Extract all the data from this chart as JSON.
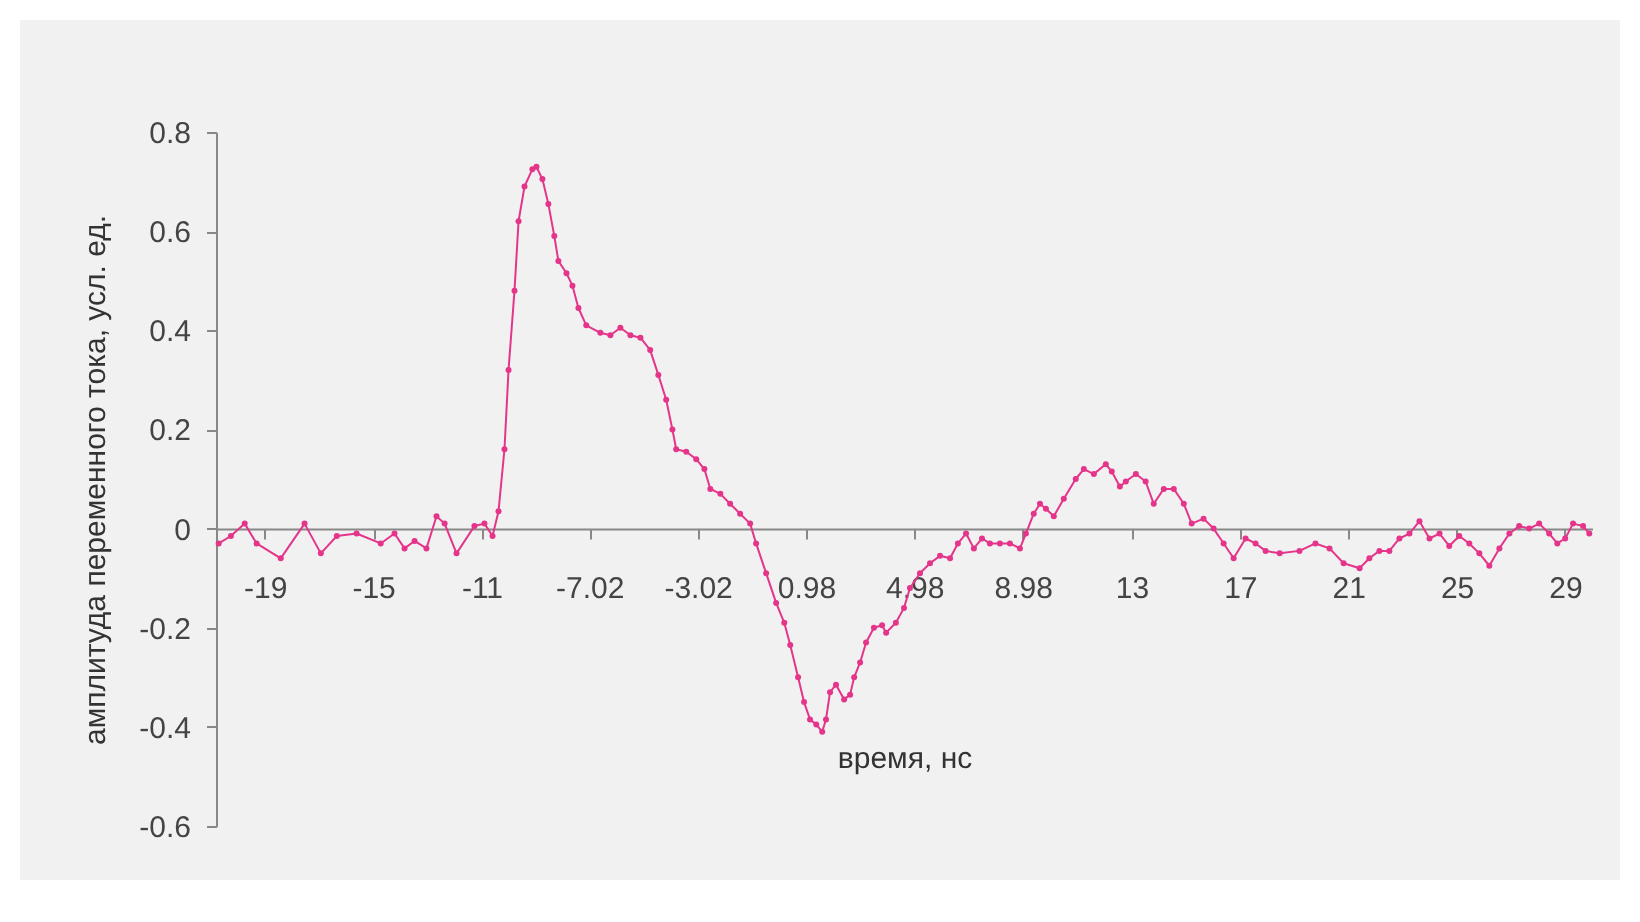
{
  "chart_data": {
    "type": "line",
    "xlabel": "время, нс",
    "ylabel": "амплитуда переменного тока, усл. ед.",
    "x": [
      -20.7,
      -20.25,
      -19.74,
      -19.3,
      -18.41,
      -17.53,
      -16.93,
      -16.34,
      -15.61,
      -14.72,
      -14.21,
      -13.84,
      -13.47,
      -13.03,
      -12.66,
      -12.36,
      -11.92,
      -11.26,
      -10.89,
      -10.59,
      -10.37,
      -10.15,
      -10.0,
      -9.78,
      -9.63,
      -9.41,
      -9.12,
      -8.97,
      -8.75,
      -8.53,
      -8.31,
      -8.16,
      -7.86,
      -7.64,
      -7.42,
      -7.13,
      -6.61,
      -6.24,
      -5.87,
      -5.5,
      -5.13,
      -4.77,
      -4.47,
      -4.18,
      -3.95,
      -3.81,
      -3.44,
      -3.07,
      -2.77,
      -2.55,
      -2.18,
      -1.82,
      -1.45,
      -1.08,
      -0.86,
      -0.49,
      -0.12,
      0.18,
      0.4,
      0.69,
      0.91,
      1.13,
      1.36,
      1.58,
      1.72,
      1.87,
      2.09,
      2.39,
      2.61,
      2.76,
      2.98,
      3.2,
      3.49,
      3.79,
      3.94,
      4.3,
      4.6,
      4.82,
      5.19,
      5.56,
      5.93,
      6.3,
      6.59,
      6.89,
      7.18,
      7.48,
      7.77,
      8.14,
      8.51,
      8.88,
      9.1,
      9.39,
      9.62,
      9.84,
      10.13,
      10.5,
      10.94,
      11.24,
      11.61,
      12.05,
      12.27,
      12.57,
      12.79,
      13.16,
      13.52,
      13.82,
      14.19,
      14.56,
      14.93,
      15.22,
      15.66,
      16.03,
      16.4,
      16.77,
      17.21,
      17.58,
      17.95,
      18.47,
      19.2,
      19.79,
      20.31,
      20.83,
      21.42,
      21.78,
      22.15,
      22.52,
      22.89,
      23.26,
      23.63,
      24.0,
      24.37,
      24.73,
      25.1,
      25.47,
      25.84,
      26.21,
      26.58,
      26.95,
      27.31,
      27.68,
      28.05,
      28.42,
      28.72,
      29.01,
      29.3,
      29.67,
      29.9
    ],
    "series": [
      {
        "color": "#e4358a",
        "values": [
          -0.03,
          -0.015,
          0.01,
          -0.03,
          -0.06,
          0.01,
          -0.05,
          -0.015,
          -0.01,
          -0.03,
          -0.01,
          -0.04,
          -0.025,
          -0.04,
          0.025,
          0.01,
          -0.05,
          0.005,
          0.01,
          -0.015,
          0.035,
          0.16,
          0.32,
          0.48,
          0.62,
          0.69,
          0.725,
          0.73,
          0.705,
          0.655,
          0.59,
          0.54,
          0.515,
          0.49,
          0.445,
          0.41,
          0.395,
          0.39,
          0.405,
          0.39,
          0.385,
          0.36,
          0.31,
          0.26,
          0.2,
          0.16,
          0.155,
          0.14,
          0.12,
          0.08,
          0.07,
          0.05,
          0.03,
          0.01,
          -0.03,
          -0.09,
          -0.15,
          -0.19,
          -0.235,
          -0.3,
          -0.35,
          -0.385,
          -0.395,
          -0.41,
          -0.385,
          -0.33,
          -0.315,
          -0.345,
          -0.335,
          -0.3,
          -0.27,
          -0.23,
          -0.2,
          -0.195,
          -0.21,
          -0.19,
          -0.16,
          -0.12,
          -0.09,
          -0.07,
          -0.055,
          -0.06,
          -0.03,
          -0.01,
          -0.04,
          -0.02,
          -0.03,
          -0.03,
          -0.03,
          -0.04,
          -0.01,
          0.03,
          0.05,
          0.04,
          0.025,
          0.06,
          0.1,
          0.12,
          0.11,
          0.13,
          0.115,
          0.085,
          0.095,
          0.11,
          0.095,
          0.05,
          0.08,
          0.08,
          0.05,
          0.01,
          0.02,
          0,
          -0.03,
          -0.06,
          -0.02,
          -0.03,
          -0.045,
          -0.05,
          -0.045,
          -0.03,
          -0.04,
          -0.07,
          -0.08,
          -0.06,
          -0.045,
          -0.045,
          -0.02,
          -0.01,
          0.015,
          -0.02,
          -0.01,
          -0.035,
          -0.015,
          -0.03,
          -0.05,
          -0.075,
          -0.04,
          -0.01,
          0.005,
          0,
          0.01,
          -0.01,
          -0.03,
          -0.02,
          0.01,
          0.005,
          -0.01
        ]
      }
    ],
    "xlim": [
      -20.8,
      30
    ],
    "ylim": [
      -0.6,
      0.8
    ],
    "xticks": [
      -19,
      -15,
      -11,
      -7.02,
      -3.02,
      0.98,
      4.98,
      8.98,
      13,
      17,
      21,
      25,
      29
    ],
    "yticks": [
      -0.6,
      -0.4,
      -0.2,
      0,
      0.2,
      0.4,
      0.6,
      0.8
    ],
    "marker": "circle"
  }
}
